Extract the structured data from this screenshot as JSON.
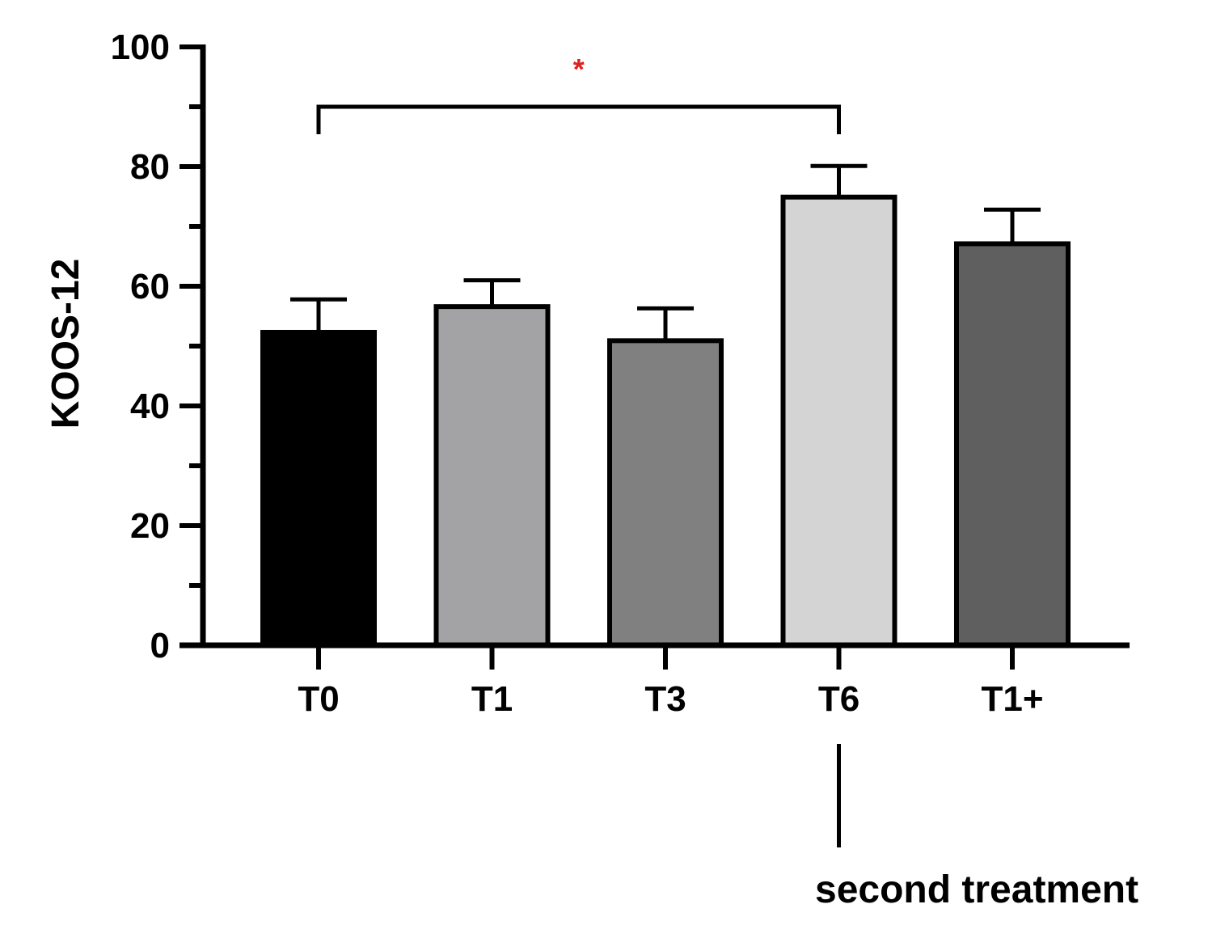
{
  "chart_data": {
    "type": "bar",
    "title": "",
    "xlabel": "",
    "ylabel": "KOOS-12",
    "ylim": [
      0,
      100
    ],
    "yticks": [
      0,
      20,
      40,
      60,
      80,
      100
    ],
    "categories": [
      "T0",
      "T1",
      "T3",
      "T6",
      "T1+"
    ],
    "values": [
      52.3,
      56.6,
      50.9,
      74.9,
      67.1
    ],
    "error_upper": [
      5.5,
      4.4,
      5.4,
      5.2,
      5.7
    ],
    "bar_colors": [
      "#000000",
      "#a3a3a6",
      "#808080",
      "#d4d4d4",
      "#5f5f5f"
    ],
    "grid": false,
    "legend": "none",
    "significance": [
      {
        "from": "T0",
        "to": "T6",
        "label": "*",
        "color": "#e02020",
        "level": 90
      }
    ],
    "annotations": [
      {
        "text": "second treatment",
        "category": "T6"
      }
    ]
  }
}
